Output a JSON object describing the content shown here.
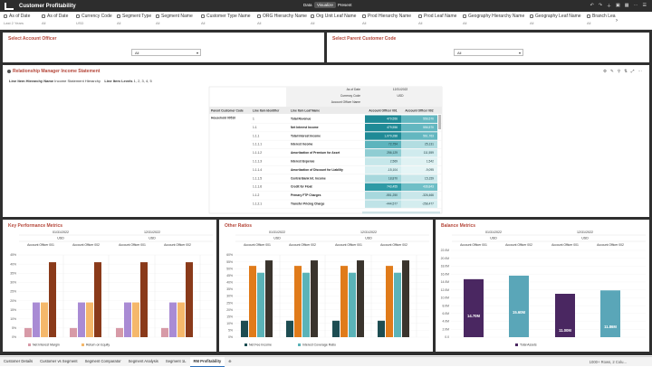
{
  "app": {
    "title": "Customer Profitability",
    "modes": [
      "Data",
      "Visualize",
      "Present"
    ],
    "active_mode": "Visualize"
  },
  "filters": [
    {
      "label": "As of Date",
      "value": "Last 2 Years"
    },
    {
      "label": "As of Date",
      "value": "All"
    },
    {
      "label": "Currency Code",
      "value": "USD"
    },
    {
      "label": "Segment Type",
      "value": "All"
    },
    {
      "label": "Segment Name",
      "value": "All"
    },
    {
      "label": "Customer Type Name",
      "value": "All"
    },
    {
      "label": "ORG Hierarchy Name",
      "value": "All"
    },
    {
      "label": "Org Unit Leaf Name",
      "value": "All"
    },
    {
      "label": "Prod Hierarchy Name",
      "value": "All"
    },
    {
      "label": "Prod Leaf Name",
      "value": "All"
    },
    {
      "label": "Geography Hierarchy Name",
      "value": "All"
    },
    {
      "label": "Geography Leaf Name",
      "value": "All"
    },
    {
      "label": "Branch Lea",
      "value": "All"
    }
  ],
  "officer_panel": {
    "title": "Select Account Officer",
    "value": "All"
  },
  "parent_panel": {
    "title": "Select Parent Customer Code",
    "value": "All"
  },
  "statement": {
    "title": "Relationship Manager Income Statement",
    "hier_label": "Line Item Hierarchy Name",
    "hier_value": "Income Statement Hierarchy",
    "level_label": "Line Item Levels",
    "level_value": "1, 2, 3, 4, 5",
    "hdr_as_of": "As of Date",
    "hdr_date": "12/31/2022",
    "hdr_currency": "Currency Code",
    "hdr_usd": "USD",
    "hdr_officer": "Account Officer Name",
    "col_parent": "Parent Customer Code",
    "col_line_id": "Line Item Identifier",
    "col_leaf": "Line Item Leaf Name",
    "col_ao1": "Account Officer 001",
    "col_ao2": "Account Officer 002",
    "parent_code": "Household 00510",
    "rows": [
      {
        "id": "1",
        "name": "Total Revenue",
        "v1": "479,556",
        "v2": "556,570"
      },
      {
        "id": "1.1",
        "name": "Net Interest Income",
        "v1": "479,556",
        "v2": "556,570"
      },
      {
        "id": "1.1.1",
        "name": "Total Interest Income",
        "v1": "1,079,288",
        "v2": "561,763"
      },
      {
        "id": "1.1.1.1",
        "name": "Interest Income",
        "v1": "72,754",
        "v2": "25,131"
      },
      {
        "id": "1.1.1.2",
        "name": "Amortization of Premium for Asset",
        "v1": "256,129",
        "v2": "111,559"
      },
      {
        "id": "1.1.1.3",
        "name": "Interest Expense",
        "v1": "2,569",
        "v2": "1,542"
      },
      {
        "id": "1.1.1.4",
        "name": "Amortization of Discount for Liability",
        "v1": "-15,104",
        "v2": "-9,095"
      },
      {
        "id": "1.1.1.5",
        "name": "Central Bank Int. Income",
        "v1": "18,870",
        "v2": "15,159"
      },
      {
        "id": "1.1.1.6",
        "name": "Credit for Float",
        "v1": "743,455",
        "v2": "436,843"
      },
      {
        "id": "1.1.2",
        "name": "Primary FTP Charges",
        "v1": "-551,250",
        "v2": "-326,466"
      },
      {
        "id": "1.1.2.1",
        "name": "Transfer Pricing Charge",
        "v1": "-444,577",
        "v2": "-258,477"
      }
    ]
  },
  "kpi": {
    "title": "Key Performance Metrics",
    "date_1": "01/31/2022",
    "date_2": "12/31/2022",
    "currency": "USD",
    "officer_1": "Account Officer 001",
    "officer_2": "Account Officer 002",
    "legend_1": "Net Interest Margin",
    "legend_2": "Return on Equity"
  },
  "other": {
    "title": "Other Ratios",
    "date_1": "01/31/2022",
    "date_2": "12/31/2022",
    "currency": "USD",
    "officer_1": "Account Officer 001",
    "officer_2": "Account Officer 002",
    "legend_1": "Net Fee Income",
    "legend_2": "Interest Coverage Ratio"
  },
  "balance": {
    "title": "Balance Metrics",
    "date_1": "01/31/2022",
    "date_2": "12/31/2022",
    "currency": "USD",
    "officer_1": "Account Officer 001",
    "officer_2": "Account Officer 002",
    "legend_1": "Total Assets"
  },
  "chart_data": [
    {
      "type": "bar",
      "title": "Key Performance Metrics",
      "groups": [
        "01/31/2022 · Account Officer 001",
        "01/31/2022 · Account Officer 002",
        "12/31/2022 · Account Officer 001",
        "12/31/2022 · Account Officer 002"
      ],
      "yticks": [
        "45%",
        "40%",
        "35%",
        "30%",
        "25%",
        "20%",
        "15%",
        "10%",
        "5%",
        "0%"
      ],
      "ylim": [
        0,
        45
      ],
      "series_colors": [
        "#d79aa7",
        "#a98bd4",
        "#f5b86b",
        "#8a3a1a"
      ],
      "values": [
        [
          5,
          19,
          19,
          41
        ],
        [
          5,
          19,
          19,
          41
        ],
        [
          5,
          19,
          19,
          41
        ],
        [
          5,
          19,
          19,
          41
        ]
      ],
      "series": [
        {
          "name": "Net Interest Margin"
        },
        {
          "name": "Return on Equity"
        }
      ]
    },
    {
      "type": "bar",
      "title": "Other Ratios",
      "groups": [
        "01/31/2022 · Account Officer 001",
        "01/31/2022 · Account Officer 002",
        "12/31/2022 · Account Officer 001",
        "12/31/2022 · Account Officer 002"
      ],
      "yticks": [
        "60%",
        "55%",
        "50%",
        "45%",
        "40%",
        "35%",
        "30%",
        "25%",
        "20%",
        "15%",
        "10%",
        "5%",
        "0%"
      ],
      "ylim": [
        0,
        60
      ],
      "series_colors": [
        "#1d4d52",
        "#e07b1a",
        "#5bb3b8",
        "#3a342d"
      ],
      "values": [
        [
          12,
          52,
          47,
          56
        ],
        [
          12,
          52,
          47,
          56
        ],
        [
          12,
          52,
          47,
          56
        ],
        [
          12,
          52,
          47,
          56
        ]
      ],
      "series": [
        {
          "name": "Net Fee Income"
        },
        {
          "name": "Interest Coverage Ratio"
        }
      ]
    },
    {
      "type": "bar",
      "title": "Balance Metrics",
      "groups": [
        "01/31/2022",
        "12/31/2022"
      ],
      "yticks": [
        "22.0M",
        "20.0M",
        "18.0M",
        "16.0M",
        "14.0M",
        "12.0M",
        "10.0M",
        "8.0M",
        "6.0M",
        "4.0M",
        "2.0M",
        "0.0"
      ],
      "ylim": [
        0,
        22
      ],
      "series_colors": [
        "#4a2761",
        "#5aa6b8"
      ],
      "values": [
        [
          14.7,
          15.6,
          11.0,
          11.86
        ],
        [
          14.7,
          15.72,
          11.0,
          11.86
        ]
      ],
      "labels": [
        [
          "14.70M",
          "15.60M",
          "11.00M",
          "11.86M"
        ],
        [
          "14.70M",
          "15.72M",
          "11.00M",
          "11.86M"
        ]
      ],
      "series": [
        {
          "name": "Total Assets"
        }
      ]
    }
  ],
  "tabs": [
    "Customer Details",
    "Customer vs Segment",
    "Segment Comparator",
    "Segment Analysis",
    "Segment 1L",
    "RM Profitability"
  ],
  "active_tab": "RM Profitability",
  "status": "1000+ Rows, 2 Colu..."
}
